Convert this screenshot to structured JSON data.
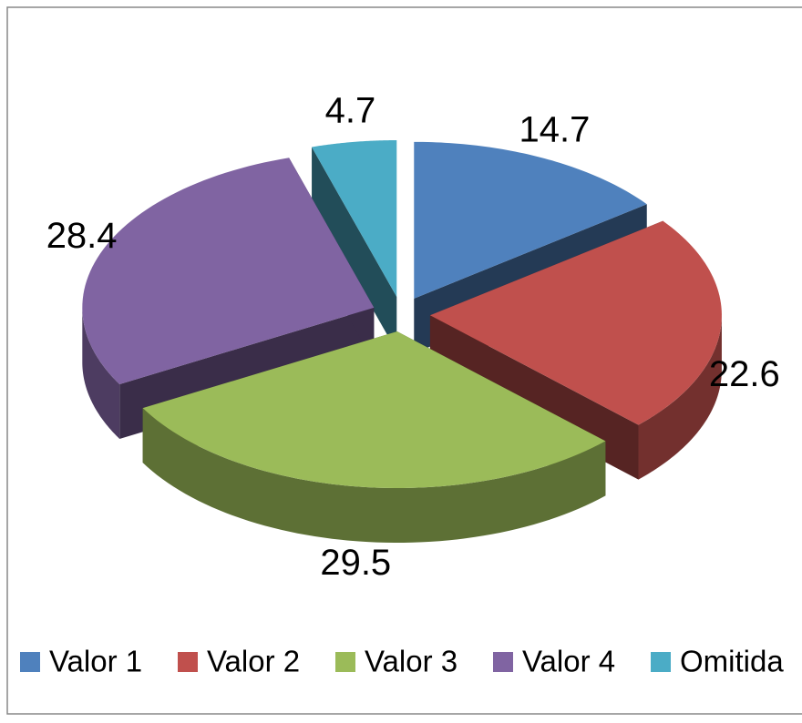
{
  "chart_data": {
    "type": "pie3d",
    "categories": [
      "Valor 1",
      "Valor 2",
      "Valor 3",
      "Valor 4",
      "Omitida"
    ],
    "series": [
      {
        "values": [
          14.7,
          22.6,
          29.5,
          28.4,
          4.7
        ],
        "colors": [
          "#4f81bd",
          "#c0504d",
          "#9bbb59",
          "#8064a2",
          "#4bacc6"
        ]
      }
    ],
    "legend": "bottom"
  }
}
